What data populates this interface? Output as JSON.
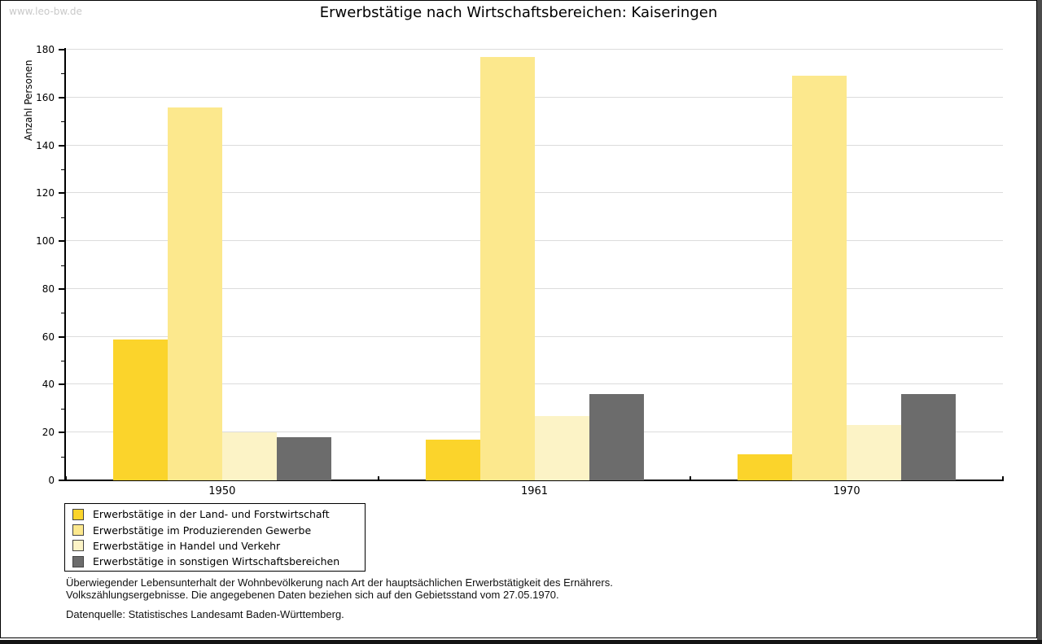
{
  "watermark": "www.leo-bw.de",
  "title": "Erwerbstätige nach Wirtschaftsbereichen: Kaiseringen",
  "chart_data": {
    "type": "bar",
    "title": "Erwerbstätige nach Wirtschaftsbereichen: Kaiseringen",
    "ylabel": "Anzahl Personen",
    "ylim": [
      0,
      180
    ],
    "ytick_step": 20,
    "yminor_step": 10,
    "grid": true,
    "legend_position": "bottom-left",
    "categories": [
      "1950",
      "1961",
      "1970"
    ],
    "series": [
      {
        "name": "Erwerbstätige in der Land- und Forstwirtschaft",
        "color": "#FBD42B",
        "values": [
          59,
          17,
          11
        ]
      },
      {
        "name": "Erwerbstätige im Produzierenden Gewerbe",
        "color": "#FCE88D",
        "values": [
          156,
          177,
          169
        ]
      },
      {
        "name": "Erwerbstätige in Handel und Verkehr",
        "color": "#FCF3C6",
        "values": [
          20,
          27,
          23
        ]
      },
      {
        "name": "Erwerbstätige in sonstigen Wirtschaftsbereichen",
        "color": "#6C6C6C",
        "values": [
          18,
          36,
          36
        ]
      }
    ]
  },
  "footnotes": [
    "Überwiegender Lebensunterhalt der Wohnbevölkerung nach Art der hauptsächlichen Erwerbstätigkeit des Ernährers.",
    "Volkszählungsergebnisse. Die angegebenen Daten beziehen sich auf den Gebietsstand vom 27.05.1970."
  ],
  "source": "Datenquelle: Statistisches Landesamt Baden-Württemberg."
}
